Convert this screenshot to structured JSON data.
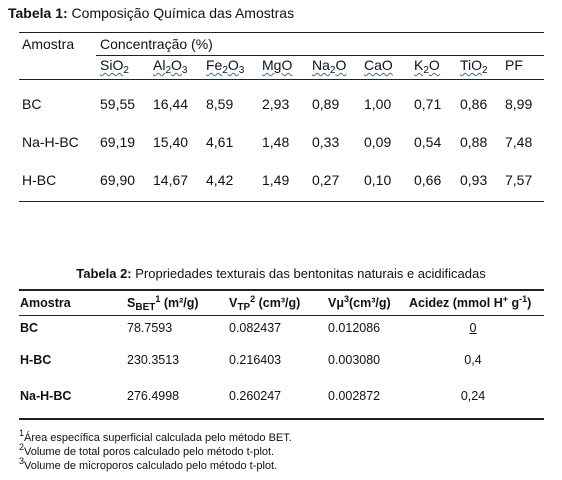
{
  "table1": {
    "title_bold": "Tabela 1:",
    "title_rest": " Composição Química das Amostras",
    "header_sample": "Amostra",
    "header_concentration": "Concentração (%)",
    "oxides": [
      {
        "base": "SiO",
        "sub": "2",
        "after": ""
      },
      {
        "base": "Al",
        "sub": "2",
        "after": "O",
        "sub2": "3"
      },
      {
        "base": "Fe",
        "sub": "2",
        "after": "O",
        "sub2": "3"
      },
      {
        "base": "MgO",
        "sub": "",
        "after": ""
      },
      {
        "base": "Na",
        "sub": "2",
        "after": "O"
      },
      {
        "base": "CaO",
        "sub": "",
        "after": ""
      },
      {
        "base": "K",
        "sub": "2",
        "after": "O"
      },
      {
        "base": "TiO",
        "sub": "2",
        "after": ""
      },
      {
        "base": "PF",
        "sub": "",
        "after": ""
      }
    ],
    "rows": [
      {
        "sample": "BC",
        "values": [
          "59,55",
          "16,44",
          "8,59",
          "2,93",
          "0,89",
          "1,00",
          "0,71",
          "0,86",
          "8,99"
        ]
      },
      {
        "sample": "Na-H-BC",
        "values": [
          "69,19",
          "15,40",
          "4,61",
          "1,48",
          "0,33",
          "0,09",
          "0,54",
          "0,88",
          "7,48"
        ]
      },
      {
        "sample": "H-BC",
        "values": [
          "69,90",
          "14,67",
          "4,42",
          "1,49",
          "0,27",
          "0,10",
          "0,66",
          "0,93",
          "7,57"
        ]
      }
    ]
  },
  "table2": {
    "title_bold": "Tabela 2:",
    "title_rest": " Propriedades texturais das bentonitas naturais e acidificadas",
    "headers": {
      "sample": "Amostra",
      "sbet_base": "S",
      "sbet_sub": "BET",
      "sbet_sup": "1",
      "sbet_unit": " (m²/g)",
      "vtp_base": "V",
      "vtp_sub": "TP",
      "vtp_sup": "2",
      "vtp_unit": " (cm³/g)",
      "vmu_base": "Vμ",
      "vmu_sup": "3",
      "vmu_unit": "(cm³/g)",
      "acid": "Acidez (mmol H",
      "acid_sup1": "+",
      "acid_mid": " g",
      "acid_sup2": "-1",
      "acid_end": ")"
    },
    "rows": [
      {
        "sample": "BC",
        "sbet": "78.7593",
        "vtp": "0.082437",
        "vmu": "0.012086",
        "acid": "0"
      },
      {
        "sample": "H-BC",
        "sbet": "230.3513",
        "vtp": "0.216403",
        "vmu": "0.003080",
        "acid": "0,4"
      },
      {
        "sample": "Na-H-BC",
        "sbet": "276.4998",
        "vtp": "0.260247",
        "vmu": "0.002872",
        "acid": "0,24"
      }
    ]
  },
  "footnotes": [
    {
      "mark": "1",
      "text": "Área específica superficial calculada pelo método BET."
    },
    {
      "mark": "2",
      "text": "Volume de total poros calculado pelo método t-plot."
    },
    {
      "mark": "3",
      "text": "Volume de microporos calculado pelo método t-plot."
    }
  ]
}
